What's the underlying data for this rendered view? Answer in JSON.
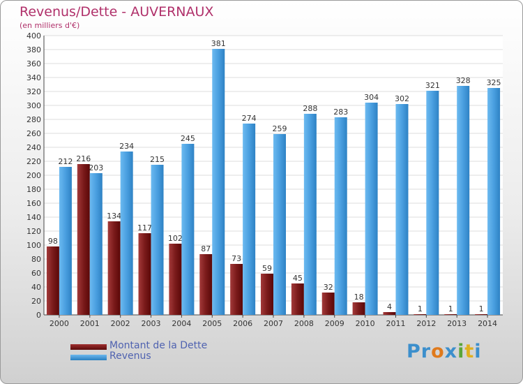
{
  "chart_data": {
    "type": "bar",
    "title": "Revenus/Dette - AUVERNAUX",
    "subtitle": "(en milliers d'€)",
    "xlabel": "",
    "ylabel": "",
    "ylim": [
      0,
      400
    ],
    "ytick_step": 20,
    "yticks": [
      "0",
      "20",
      "40",
      "60",
      "80",
      "100",
      "120",
      "140",
      "160",
      "180",
      "200",
      "220",
      "240",
      "260",
      "280",
      "300",
      "320",
      "340",
      "360",
      "380",
      "400"
    ],
    "grid": true,
    "categories": [
      "2000",
      "2001",
      "2002",
      "2003",
      "2004",
      "2005",
      "2006",
      "2007",
      "2008",
      "2009",
      "2010",
      "2011",
      "2012",
      "2013",
      "2014"
    ],
    "series": [
      {
        "name": "Montant de la Dette",
        "color": "#7a1a1a",
        "values": [
          98,
          216,
          134,
          117,
          102,
          87,
          73,
          59,
          45,
          32,
          18,
          4,
          1,
          1,
          1
        ]
      },
      {
        "name": "Revenus",
        "color": "#4a9fe0",
        "values": [
          212,
          203,
          234,
          215,
          245,
          381,
          274,
          259,
          288,
          283,
          304,
          302,
          321,
          328,
          325
        ]
      }
    ],
    "legend_position": "bottom-left"
  },
  "logo": {
    "parts": [
      "Pr",
      "o",
      "x",
      "i",
      "t",
      "i"
    ]
  }
}
